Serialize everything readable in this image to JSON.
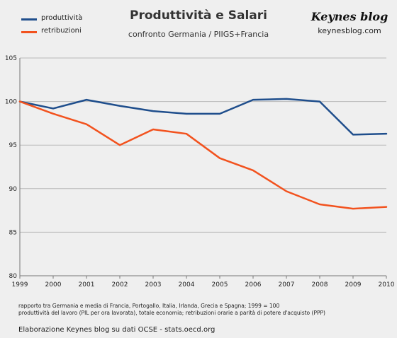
{
  "chart_data": {
    "type": "line",
    "title": "Produttività e Salari",
    "subtitle": "confronto Germania / PIIGS+Francia",
    "x": [
      "1999",
      "2000",
      "2001",
      "2002",
      "2003",
      "2004",
      "2005",
      "2006",
      "2007",
      "2008",
      "2009",
      "2010"
    ],
    "series": [
      {
        "name": "produttività",
        "color": "#1f4e8c",
        "values": [
          100,
          99.2,
          100.2,
          99.5,
          98.9,
          98.6,
          98.6,
          100.2,
          100.3,
          100.0,
          96.2,
          96.3
        ]
      },
      {
        "name": "retribuzioni",
        "color": "#f2521e",
        "values": [
          100,
          98.6,
          97.4,
          95.0,
          96.8,
          96.3,
          93.5,
          92.1,
          89.7,
          88.2,
          87.7,
          87.9
        ]
      }
    ],
    "ylim": [
      80,
      105
    ],
    "yticks": [
      "80",
      "85",
      "90",
      "95",
      "100",
      "105"
    ],
    "grid": "horizontal",
    "legend": "top-left"
  },
  "brand": {
    "name": "Keynes blog",
    "url": "keynesblog.com"
  },
  "notes": [
    "rapporto tra Germania e media di Francia, Portogallo, Italia, Irlanda, Grecia e Spagna; 1999 = 100",
    "produttività del lavoro (PIL per ora lavorata), totale economia; retribuzioni orarie a parità di potere d'acquisto (PPP)"
  ],
  "source": "Elaborazione Keynes blog su dati OCSE - stats.oecd.org"
}
